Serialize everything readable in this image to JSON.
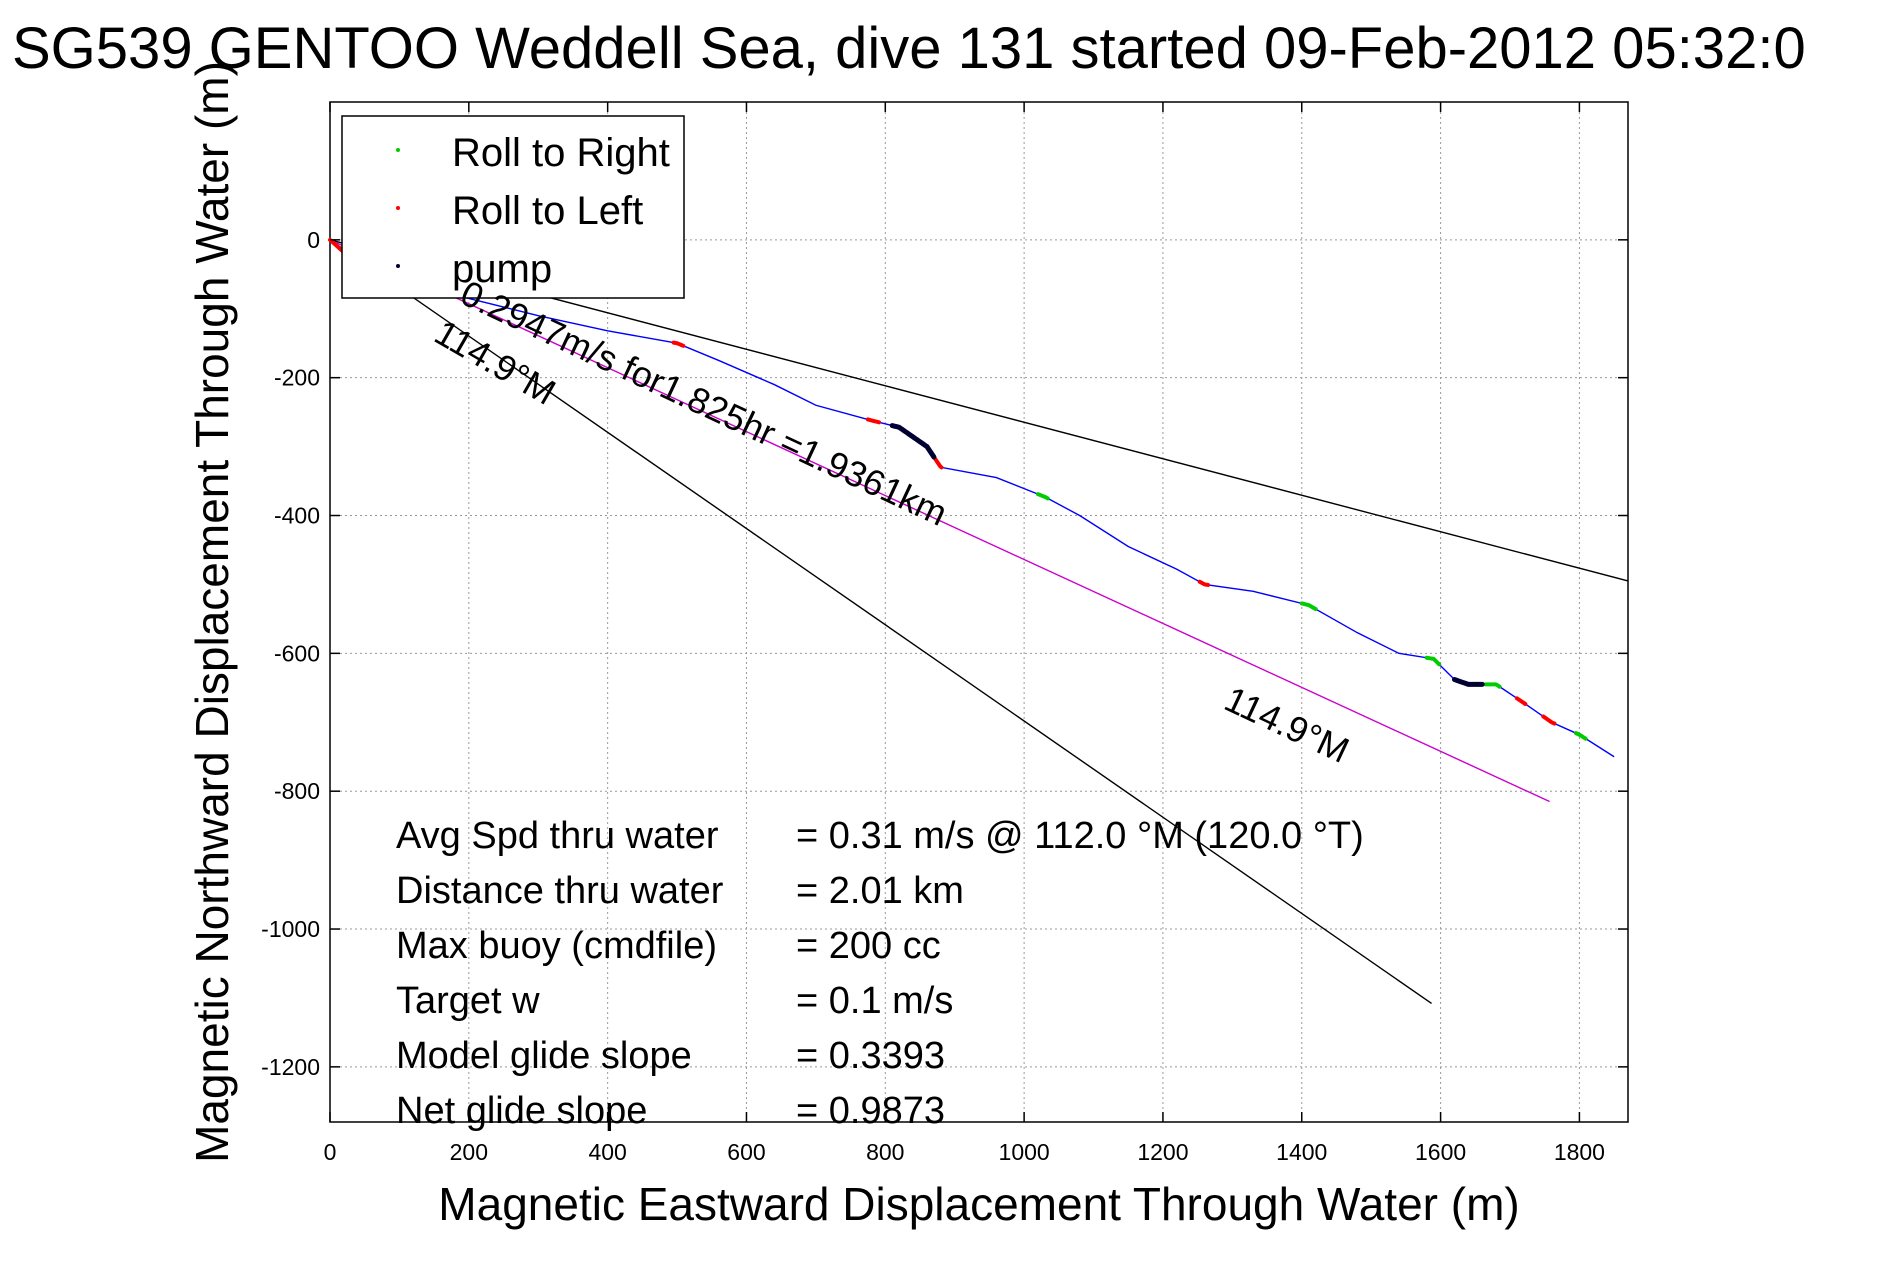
{
  "title": "SG539 GENTOO Weddell Sea, dive 131 started 09-Feb-2012 05:32:0",
  "chart_data": {
    "type": "line",
    "xlabel": "Magnetic Eastward Displacement Through Water (m)",
    "ylabel": "Magnetic Northward Displacement Through Water (m)",
    "xlim": [
      0,
      1870
    ],
    "ylim": [
      -1280,
      200
    ],
    "xticks": [
      0,
      200,
      400,
      600,
      800,
      1000,
      1200,
      1400,
      1600,
      1800
    ],
    "yticks": [
      0,
      -200,
      -400,
      -600,
      -800,
      -1000,
      -1200
    ],
    "grid": true,
    "legend_position": "top-left",
    "legend": [
      {
        "label": "Roll to Right",
        "color": "#00cc00"
      },
      {
        "label": "Roll to Left",
        "color": "#ff0000"
      },
      {
        "label": "pump",
        "color": "#000033"
      }
    ],
    "track": {
      "color": "#0000ff",
      "x": [
        0,
        20,
        60,
        120,
        200,
        300,
        400,
        500,
        560,
        640,
        700,
        780,
        820,
        860,
        880,
        960,
        1030,
        1080,
        1150,
        1220,
        1260,
        1330,
        1410,
        1480,
        1540,
        1590,
        1620,
        1640,
        1680,
        1720,
        1760,
        1800,
        1850
      ],
      "y": [
        0,
        -18,
        -35,
        -60,
        -85,
        -110,
        -132,
        -150,
        -175,
        -210,
        -240,
        -262,
        -272,
        -300,
        -330,
        -345,
        -373,
        -400,
        -445,
        -478,
        -500,
        -510,
        -530,
        -570,
        -600,
        -608,
        -638,
        -645,
        -645,
        -672,
        -700,
        -718,
        -750
      ]
    },
    "reference_lines": [
      {
        "color": "#000000",
        "x": [
          0,
          1870
        ],
        "y": [
          0,
          -495
        ]
      },
      {
        "color": "#cc00cc",
        "x": [
          0,
          1757
        ],
        "y": [
          0,
          -815
        ]
      },
      {
        "color": "#000000",
        "x": [
          0,
          1587
        ],
        "y": [
          0,
          -1108
        ]
      }
    ],
    "roll_right_segments": [
      [
        1020,
        1035
      ],
      [
        1400,
        1420
      ],
      [
        1580,
        1598
      ],
      [
        1665,
        1685
      ],
      [
        1795,
        1810
      ]
    ],
    "roll_left_segments": [
      [
        495,
        510
      ],
      [
        775,
        792
      ],
      [
        865,
        882
      ],
      [
        1253,
        1266
      ],
      [
        1625,
        1640
      ],
      [
        1710,
        1722
      ],
      [
        1748,
        1765
      ],
      [
        0,
        20
      ]
    ],
    "pump_segments": [
      [
        810,
        870
      ],
      [
        1620,
        1660
      ]
    ],
    "annotations": [
      "114.9°M",
      "0.2947m/s for1.825hr =1.9361km",
      "114.9°M"
    ],
    "stats": [
      {
        "label": "Avg Spd thru water",
        "value": "=  0.31 m/s @ 112.0 °M (120.0 °T)"
      },
      {
        "label": "Distance thru water",
        "value": "=  2.01 km"
      },
      {
        "label": "Max buoy (cmdfile)",
        "value": "= 200 cc"
      },
      {
        "label": "Target w",
        "value": "= 0.1 m/s"
      },
      {
        "label": "Model glide slope",
        "value": "= 0.3393"
      },
      {
        "label": "Net glide slope",
        "value": "= 0.9873"
      }
    ]
  }
}
